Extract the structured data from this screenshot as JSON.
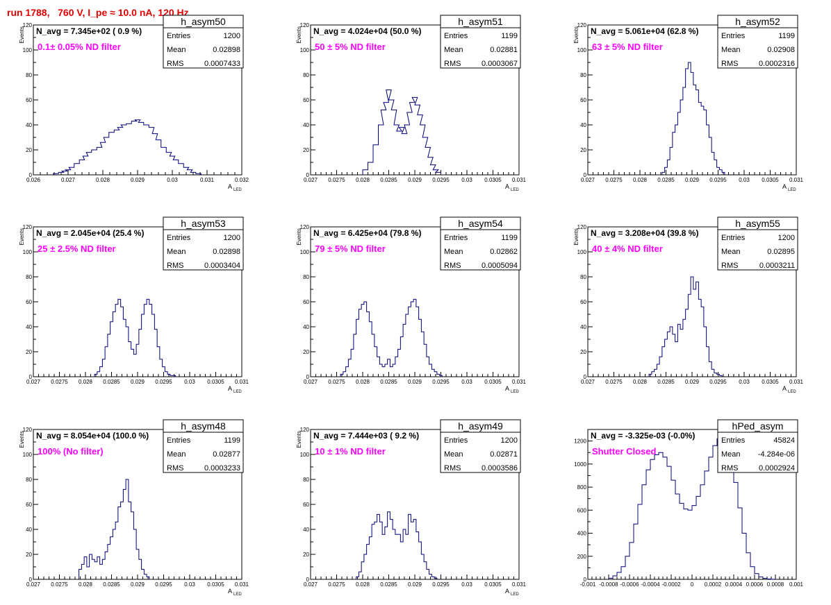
{
  "page_title": "run 1788,   760 V, I_pe ≈ 10.0 nA, 120 Hz",
  "colors": {
    "hist_line": "#00007a",
    "annotation": "#ff00ff",
    "title": "#e00000",
    "frame": "#000000"
  },
  "chart_data": [
    {
      "type": "histogram",
      "title": "h_asym50",
      "navg_label": "N_avg = 7.345e+02 ( 0.9 %)",
      "filter_label": "0.1± 0.05% ND filter",
      "stats": [
        {
          "label": "Entries",
          "value": "1200"
        },
        {
          "label": "Mean",
          "value": "0.02898"
        },
        {
          "label": "RMS",
          "value": "0.0007433"
        }
      ],
      "xlabel": "A",
      "xlabel_sub": "LED",
      "ylabel": "Events",
      "xlim": [
        0.026,
        0.032
      ],
      "ylim": [
        0,
        120
      ],
      "xticks": [
        0.026,
        0.027,
        0.028,
        0.029,
        0.03,
        0.031,
        0.032
      ],
      "xtick_labels": [
        "0.026",
        "0.027",
        "0.028",
        "0.029",
        "0.03",
        "0.031",
        "0.032"
      ],
      "yticks": [
        0,
        20,
        40,
        60,
        80,
        100,
        120
      ],
      "ytick_labels": [
        "0",
        "20",
        "40",
        "60",
        "80",
        "100",
        "120"
      ],
      "x": [
        0.02665,
        0.0268,
        0.0269,
        0.027,
        0.0271,
        0.02725,
        0.0274,
        0.0275,
        0.0276,
        0.02775,
        0.0279,
        0.028,
        0.0281,
        0.02825,
        0.0284,
        0.0285,
        0.0286,
        0.02875,
        0.0289,
        0.029,
        0.0291,
        0.02925,
        0.0294,
        0.0295,
        0.0296,
        0.02975,
        0.0299,
        0.03,
        0.0301,
        0.03025,
        0.0304,
        0.0305,
        0.0306,
        0.03075
      ],
      "y": [
        1,
        2,
        3,
        4,
        6,
        9,
        12,
        15,
        18,
        20,
        22,
        26,
        30,
        34,
        36,
        38,
        40,
        41,
        43,
        44,
        42,
        40,
        38,
        33,
        28,
        22,
        18,
        15,
        12,
        9,
        6,
        4,
        2,
        1
      ]
    },
    {
      "type": "histogram",
      "title": "h_asym51",
      "navg_label": "N_avg = 4.024e+04 (50.0 %)",
      "filter_label": "50 ± 5% ND filter",
      "stats": [
        {
          "label": "Entries",
          "value": "1199"
        },
        {
          "label": "Mean",
          "value": "0.02881"
        },
        {
          "label": "RMS",
          "value": "0.0003067"
        }
      ],
      "xlabel": "A",
      "xlabel_sub": "LED",
      "ylabel": "Events",
      "xlim": [
        0.027,
        0.031
      ],
      "ylim": [
        0,
        120
      ],
      "xticks": [
        0.027,
        0.0275,
        0.028,
        0.0285,
        0.029,
        0.0295,
        0.03,
        0.0305,
        0.031
      ],
      "xtick_labels": [
        "0.027",
        "0.0275",
        "0.028",
        "0.0285",
        "0.029",
        "0.0295",
        "0.03",
        "0.0305",
        "0.031"
      ],
      "yticks": [
        0,
        20,
        40,
        60,
        80,
        100,
        120
      ],
      "ytick_labels": [
        "0",
        "20",
        "40",
        "60",
        "80",
        "100",
        "120"
      ],
      "x": [
        0.02805,
        0.02815,
        0.02825,
        0.02835,
        0.0284,
        0.02845,
        0.0285,
        0.02855,
        0.0286,
        0.02865,
        0.0287,
        0.02875,
        0.0288,
        0.02885,
        0.0289,
        0.02895,
        0.029,
        0.02905,
        0.0291,
        0.02915,
        0.0292,
        0.02925,
        0.0293,
        0.02935,
        0.0294,
        0.02945
      ],
      "y": [
        4,
        10,
        24,
        40,
        52,
        58,
        68,
        60,
        52,
        40,
        35,
        38,
        33,
        40,
        50,
        58,
        62,
        56,
        48,
        40,
        30,
        22,
        14,
        8,
        4,
        2
      ]
    },
    {
      "type": "histogram",
      "title": "h_asym52",
      "navg_label": "N_avg = 5.061e+04 (62.8 %)",
      "filter_label": "63 ± 5% ND filter",
      "stats": [
        {
          "label": "Entries",
          "value": "1199"
        },
        {
          "label": "Mean",
          "value": "0.02908"
        },
        {
          "label": "RMS",
          "value": "0.0002316"
        }
      ],
      "xlabel": "A",
      "xlabel_sub": "LED",
      "ylabel": "Events",
      "xlim": [
        0.027,
        0.031
      ],
      "ylim": [
        0,
        120
      ],
      "xticks": [
        0.027,
        0.0275,
        0.028,
        0.0285,
        0.029,
        0.0295,
        0.03,
        0.0305,
        0.031
      ],
      "xtick_labels": [
        "0.027",
        "0.0275",
        "0.028",
        "0.0285",
        "0.029",
        "0.0295",
        "0.03",
        "0.0305",
        "0.031"
      ],
      "yticks": [
        0,
        20,
        40,
        60,
        80,
        100,
        120
      ],
      "ytick_labels": [
        "0",
        "20",
        "40",
        "60",
        "80",
        "100",
        "120"
      ],
      "x": [
        0.02845,
        0.0285,
        0.02855,
        0.0286,
        0.02865,
        0.0287,
        0.02875,
        0.0288,
        0.02885,
        0.0289,
        0.02895,
        0.029,
        0.02905,
        0.0291,
        0.02915,
        0.0292,
        0.02925,
        0.0293,
        0.02935,
        0.0294,
        0.02945,
        0.0295,
        0.02955,
        0.0296
      ],
      "y": [
        2,
        6,
        12,
        22,
        34,
        40,
        50,
        60,
        70,
        85,
        90,
        82,
        72,
        68,
        58,
        55,
        52,
        40,
        30,
        18,
        12,
        6,
        4,
        2
      ]
    },
    {
      "type": "histogram",
      "title": "h_asym53",
      "navg_label": "N_avg = 2.045e+04 (25.4 %)",
      "filter_label": "25 ± 2.5% ND filter",
      "stats": [
        {
          "label": "Entries",
          "value": "1200"
        },
        {
          "label": "Mean",
          "value": "0.02898"
        },
        {
          "label": "RMS",
          "value": "0.0003404"
        }
      ],
      "xlabel": "A",
      "xlabel_sub": "LED",
      "ylabel": "Events",
      "xlim": [
        0.027,
        0.031
      ],
      "ylim": [
        0,
        120
      ],
      "xticks": [
        0.027,
        0.0275,
        0.028,
        0.0285,
        0.029,
        0.0295,
        0.03,
        0.0305,
        0.031
      ],
      "xtick_labels": [
        "0.027",
        "0.0275",
        "0.028",
        "0.0285",
        "0.029",
        "0.0295",
        "0.03",
        "0.0305",
        "0.031"
      ],
      "yticks": [
        0,
        20,
        40,
        60,
        80,
        100,
        120
      ],
      "ytick_labels": [
        "0",
        "20",
        "40",
        "60",
        "80",
        "100",
        "120"
      ],
      "x": [
        0.0282,
        0.02825,
        0.0283,
        0.02835,
        0.0284,
        0.02845,
        0.0285,
        0.02855,
        0.0286,
        0.02865,
        0.0287,
        0.02875,
        0.0288,
        0.02885,
        0.0289,
        0.02895,
        0.029,
        0.02905,
        0.0291,
        0.02915,
        0.0292,
        0.02925,
        0.0293,
        0.02935,
        0.0294,
        0.02945,
        0.0295,
        0.02955,
        0.0296,
        0.02965,
        0.0297
      ],
      "y": [
        2,
        4,
        8,
        14,
        24,
        34,
        44,
        52,
        58,
        62,
        56,
        46,
        40,
        28,
        22,
        18,
        26,
        38,
        50,
        58,
        62,
        58,
        50,
        38,
        24,
        14,
        8,
        4,
        2,
        1,
        1
      ]
    },
    {
      "type": "histogram",
      "title": "h_asym54",
      "navg_label": "N_avg = 6.425e+04 (79.8 %)",
      "filter_label": "79 ± 5% ND filter",
      "stats": [
        {
          "label": "Entries",
          "value": "1199"
        },
        {
          "label": "Mean",
          "value": "0.02862"
        },
        {
          "label": "RMS",
          "value": "0.0005094"
        }
      ],
      "xlabel": "A",
      "xlabel_sub": "LED",
      "ylabel": "Events",
      "xlim": [
        0.027,
        0.031
      ],
      "ylim": [
        0,
        120
      ],
      "xticks": [
        0.027,
        0.0275,
        0.028,
        0.0285,
        0.029,
        0.0295,
        0.03,
        0.0305,
        0.031
      ],
      "xtick_labels": [
        "0.027",
        "0.0275",
        "0.028",
        "0.0285",
        "0.029",
        "0.0295",
        "0.03",
        "0.0305",
        "0.031"
      ],
      "yticks": [
        0,
        20,
        40,
        60,
        80,
        100,
        120
      ],
      "ytick_labels": [
        "0",
        "20",
        "40",
        "60",
        "80",
        "100",
        "120"
      ],
      "x": [
        0.0276,
        0.02765,
        0.0277,
        0.02775,
        0.0278,
        0.02785,
        0.0279,
        0.02795,
        0.028,
        0.02805,
        0.0281,
        0.02815,
        0.0282,
        0.02825,
        0.0283,
        0.02835,
        0.0284,
        0.02845,
        0.0285,
        0.02855,
        0.0286,
        0.02865,
        0.0287,
        0.02875,
        0.0288,
        0.02885,
        0.0289,
        0.02895,
        0.029,
        0.02905,
        0.0291,
        0.02915,
        0.0292,
        0.02925,
        0.0293,
        0.02935,
        0.0294,
        0.02945,
        0.0295
      ],
      "y": [
        2,
        4,
        8,
        14,
        22,
        34,
        46,
        54,
        58,
        60,
        52,
        44,
        34,
        24,
        16,
        10,
        8,
        10,
        14,
        8,
        10,
        16,
        22,
        32,
        42,
        50,
        56,
        60,
        62,
        56,
        46,
        36,
        26,
        16,
        10,
        6,
        4,
        2,
        1
      ]
    },
    {
      "type": "histogram",
      "title": "h_asym55",
      "navg_label": "N_avg = 3.208e+04 (39.8 %)",
      "filter_label": "40 ± 4% ND filter",
      "stats": [
        {
          "label": "Entries",
          "value": "1200"
        },
        {
          "label": "Mean",
          "value": "0.02895"
        },
        {
          "label": "RMS",
          "value": "0.0003211"
        }
      ],
      "xlabel": "A",
      "xlabel_sub": "LED",
      "ylabel": "Events",
      "xlim": [
        0.027,
        0.031
      ],
      "ylim": [
        0,
        120
      ],
      "xticks": [
        0.027,
        0.0275,
        0.028,
        0.0285,
        0.029,
        0.0295,
        0.03,
        0.0305,
        0.031
      ],
      "xtick_labels": [
        "0.027",
        "0.0275",
        "0.028",
        "0.0285",
        "0.029",
        "0.0295",
        "0.03",
        "0.0305",
        "0.031"
      ],
      "yticks": [
        0,
        20,
        40,
        60,
        80,
        100,
        120
      ],
      "ytick_labels": [
        "0",
        "20",
        "40",
        "60",
        "80",
        "100",
        "120"
      ],
      "x": [
        0.0282,
        0.02825,
        0.0283,
        0.02835,
        0.0284,
        0.02845,
        0.0285,
        0.02855,
        0.0286,
        0.02865,
        0.0287,
        0.02875,
        0.0288,
        0.02885,
        0.0289,
        0.02895,
        0.029,
        0.02905,
        0.0291,
        0.02915,
        0.0292,
        0.02925,
        0.0293,
        0.02935,
        0.0294,
        0.02945,
        0.0295,
        0.02955
      ],
      "y": [
        2,
        4,
        6,
        10,
        16,
        24,
        30,
        36,
        40,
        34,
        28,
        42,
        38,
        46,
        54,
        66,
        80,
        70,
        76,
        62,
        56,
        40,
        24,
        12,
        6,
        3,
        2,
        1
      ]
    },
    {
      "type": "histogram",
      "title": "h_asym48",
      "navg_label": "N_avg = 8.054e+04 (100.0 %)",
      "filter_label": "100% (No filter)",
      "stats": [
        {
          "label": "Entries",
          "value": "1199"
        },
        {
          "label": "Mean",
          "value": "0.02877"
        },
        {
          "label": "RMS",
          "value": "0.0003233"
        }
      ],
      "xlabel": "A",
      "xlabel_sub": "LED",
      "ylabel": "Events",
      "xlim": [
        0.027,
        0.031
      ],
      "ylim": [
        0,
        120
      ],
      "xticks": [
        0.027,
        0.0275,
        0.028,
        0.0285,
        0.029,
        0.0295,
        0.03,
        0.0305,
        0.031
      ],
      "xtick_labels": [
        "0.027",
        "0.0275",
        "0.028",
        "0.0285",
        "0.029",
        "0.0295",
        "0.03",
        "0.0305",
        "0.031"
      ],
      "yticks": [
        0,
        20,
        40,
        60,
        80,
        100,
        120
      ],
      "ytick_labels": [
        "0",
        "20",
        "40",
        "60",
        "80",
        "100",
        "120"
      ],
      "x": [
        0.0279,
        0.02795,
        0.028,
        0.02805,
        0.0281,
        0.02815,
        0.0282,
        0.02825,
        0.0283,
        0.02835,
        0.0284,
        0.02845,
        0.0285,
        0.02855,
        0.0286,
        0.02865,
        0.0287,
        0.02875,
        0.0288,
        0.02885,
        0.0289,
        0.02895,
        0.029,
        0.02905,
        0.0291,
        0.02915,
        0.0292
      ],
      "y": [
        8,
        12,
        18,
        10,
        20,
        16,
        14,
        18,
        12,
        16,
        22,
        28,
        34,
        40,
        46,
        58,
        62,
        72,
        80,
        62,
        54,
        40,
        24,
        16,
        8,
        4,
        2
      ]
    },
    {
      "type": "histogram",
      "title": "h_asym49",
      "navg_label": "N_avg = 7.444e+03 ( 9.2 %)",
      "filter_label": "10 ± 1% ND filter",
      "stats": [
        {
          "label": "Entries",
          "value": "1200"
        },
        {
          "label": "Mean",
          "value": "0.02871"
        },
        {
          "label": "RMS",
          "value": "0.0003586"
        }
      ],
      "xlabel": "A",
      "xlabel_sub": "LED",
      "ylabel": "Events",
      "xlim": [
        0.027,
        0.031
      ],
      "ylim": [
        0,
        120
      ],
      "xticks": [
        0.027,
        0.0275,
        0.028,
        0.0285,
        0.029,
        0.0295,
        0.03,
        0.0305,
        0.031
      ],
      "xtick_labels": [
        "0.027",
        "0.0275",
        "0.028",
        "0.0285",
        "0.029",
        "0.0295",
        "0.03",
        "0.0305",
        "0.031"
      ],
      "yticks": [
        0,
        20,
        40,
        60,
        80,
        100,
        120
      ],
      "ytick_labels": [
        "0",
        "20",
        "40",
        "60",
        "80",
        "100",
        "120"
      ],
      "x": [
        0.0279,
        0.02795,
        0.028,
        0.02805,
        0.0281,
        0.02815,
        0.0282,
        0.02825,
        0.0283,
        0.02835,
        0.0284,
        0.02845,
        0.0285,
        0.02855,
        0.0286,
        0.02865,
        0.0287,
        0.02875,
        0.0288,
        0.02885,
        0.0289,
        0.02895,
        0.029,
        0.02905,
        0.0291,
        0.02915,
        0.0292,
        0.02925,
        0.0293,
        0.02935,
        0.0294
      ],
      "y": [
        2,
        6,
        14,
        20,
        28,
        34,
        44,
        46,
        52,
        46,
        36,
        42,
        54,
        48,
        40,
        36,
        36,
        30,
        40,
        36,
        52,
        46,
        48,
        38,
        30,
        20,
        14,
        8,
        4,
        2,
        1
      ]
    },
    {
      "type": "histogram",
      "title": "hPed_asym",
      "navg_label": "N_avg = -3.325e-03 (-0.0%)",
      "filter_label": "Shutter Closed",
      "stats": [
        {
          "label": "Entries",
          "value": "45824"
        },
        {
          "label": "Mean",
          "value": "-4.284e-06"
        },
        {
          "label": "RMS",
          "value": "0.0002924"
        }
      ],
      "xlabel": "",
      "xlabel_sub": "",
      "ylabel": "",
      "xlim": [
        -0.001,
        0.001
      ],
      "ylim": [
        0,
        1300
      ],
      "xticks": [
        -0.001,
        -0.0008,
        -0.0006,
        -0.0004,
        -0.0002,
        0,
        0.0002,
        0.0004,
        0.0006,
        0.0008,
        0.001
      ],
      "xtick_labels": [
        "-0.001",
        "-0.0008",
        "-0.0006",
        "-0.0004",
        "-0.0002",
        "0",
        "0.0002",
        "0.0004",
        "0.0006",
        "0.0008",
        "0.001"
      ],
      "yticks": [
        0,
        200,
        400,
        600,
        800,
        1000,
        1200
      ],
      "ytick_labels": [
        "0",
        "200",
        "400",
        "600",
        "800",
        "1000",
        "1200"
      ],
      "x": [
        -0.00078,
        -0.00074,
        -0.0007,
        -0.00066,
        -0.00062,
        -0.00058,
        -0.00054,
        -0.0005,
        -0.00046,
        -0.00042,
        -0.00038,
        -0.00034,
        -0.0003,
        -0.00026,
        -0.00022,
        -0.00018,
        -0.00014,
        -0.0001,
        -6e-05,
        -2e-05,
        2e-05,
        6e-05,
        0.0001,
        0.00014,
        0.00018,
        0.00022,
        0.00026,
        0.0003,
        0.00034,
        0.00038,
        0.00042,
        0.00046,
        0.0005,
        0.00054,
        0.00058,
        0.00062,
        0.00066,
        0.0007,
        0.00074,
        0.00078
      ],
      "y": [
        10,
        30,
        60,
        110,
        200,
        320,
        480,
        650,
        820,
        950,
        1040,
        1080,
        1100,
        1060,
        980,
        860,
        740,
        660,
        610,
        600,
        640,
        720,
        820,
        940,
        1060,
        1160,
        1220,
        1240,
        1180,
        1040,
        840,
        620,
        400,
        230,
        110,
        50,
        20,
        8,
        3,
        1
      ]
    }
  ]
}
